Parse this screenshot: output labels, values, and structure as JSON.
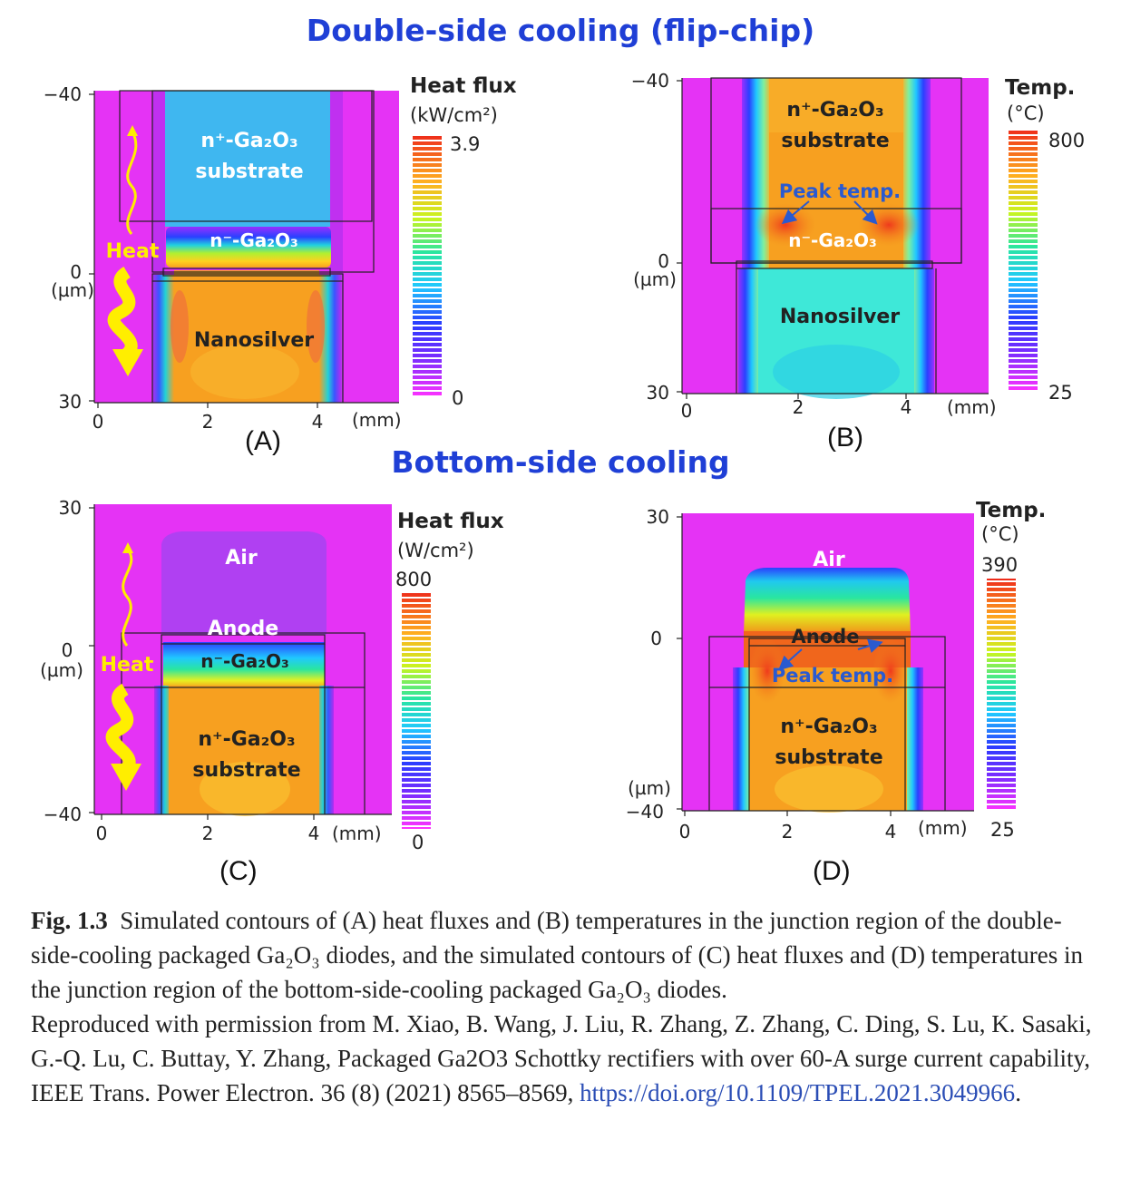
{
  "titles": {
    "top": "Double-side cooling (flip-chip)",
    "bottom": "Bottom-side cooling"
  },
  "panels": {
    "A": {
      "letter": "(A)",
      "y_ticks": [
        "−40",
        "0",
        "30"
      ],
      "y_unit": "(µm)",
      "x_ticks": [
        "0",
        "2",
        "4"
      ],
      "x_unit": "(mm)",
      "colorbar_title": "Heat flux",
      "colorbar_unit": "(kW/cm²)",
      "colorbar_max": "3.9",
      "colorbar_min": "0",
      "label_substrate_1": "n⁺-Ga₂O₃",
      "label_substrate_2": "substrate",
      "label_drift": "n⁻-Ga₂O₃",
      "label_bond": "Nanosilver",
      "label_heat": "Heat"
    },
    "B": {
      "letter": "(B)",
      "y_ticks": [
        "−40",
        "0",
        "30"
      ],
      "y_unit": "(µm)",
      "x_ticks": [
        "0",
        "2",
        "4"
      ],
      "x_unit": "(mm)",
      "colorbar_title": "Temp.",
      "colorbar_unit": "(°C)",
      "colorbar_max": "800",
      "colorbar_min": "25",
      "label_substrate_1": "n⁺-Ga₂O₃",
      "label_substrate_2": "substrate",
      "label_peak": "Peak temp.",
      "label_drift": "n⁻-Ga₂O₃",
      "label_bond": "Nanosilver"
    },
    "C": {
      "letter": "(C)",
      "y_ticks": [
        "30",
        "0",
        "−40"
      ],
      "y_unit": "(µm)",
      "x_ticks": [
        "0",
        "2",
        "4"
      ],
      "x_unit": "(mm)",
      "colorbar_title": "Heat flux",
      "colorbar_unit": "(W/cm²)",
      "colorbar_max": "800",
      "colorbar_min": "0",
      "label_air": "Air",
      "label_anode": "Anode",
      "label_drift": "n⁻-Ga₂O₃",
      "label_substrate_1": "n⁺-Ga₂O₃",
      "label_substrate_2": "substrate",
      "label_heat": "Heat"
    },
    "D": {
      "letter": "(D)",
      "y_ticks": [
        "30",
        "0",
        "−40"
      ],
      "y_unit": "(µm)",
      "x_ticks": [
        "0",
        "2",
        "4"
      ],
      "x_unit": "(mm)",
      "colorbar_title": "Temp.",
      "colorbar_unit": "(°C)",
      "colorbar_max": "390",
      "colorbar_min": "25",
      "label_air": "Air",
      "label_anode": "Anode",
      "label_peak": "Peak temp.",
      "label_substrate_1": "n⁺-Ga₂O₃",
      "label_substrate_2": "substrate"
    }
  },
  "caption": {
    "fig_label": "Fig. 1.3",
    "text": "Simulated contours of (A) heat fluxes and (B) temperatures in the junction region of the double-side-cooling packaged Ga₂O₃ diodes, and the simulated contours of (C) heat fluxes and (D) temperatures in the junction region of the bottom-side-cooling packaged Ga₂O₃ diodes.",
    "reproduced": "Reproduced with permission from M. Xiao, B. Wang, J. Liu, R. Zhang, Z. Zhang, C. Ding, S. Lu, K. Sasaki, G.-Q. Lu, C. Buttay, Y. Zhang, Packaged Ga2O3 Schottky rectifiers with over 60-A surge current capability, IEEE Trans. Power Electron. 36 (8) (2021) 8565–8569, ",
    "link": "https://doi.org/10.1109/TPEL.2021.3049966",
    "end": "."
  },
  "colors": {
    "title_blue": "#1f3fd6",
    "magenta": "#e533f5",
    "cyan": "#3fb7f0",
    "orange": "#f7a020",
    "red": "#e8321c",
    "heat_arrow": "#ffee00",
    "link": "#2a4db5"
  }
}
